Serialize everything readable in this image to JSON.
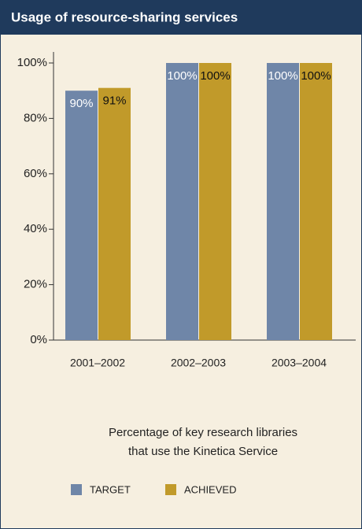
{
  "chart_data": {
    "type": "bar",
    "title": "Usage of resource-sharing services",
    "categories": [
      "2001–2002",
      "2002–2003",
      "2003–2004"
    ],
    "series": [
      {
        "name": "TARGET",
        "color": "#6f86a8",
        "values": [
          90,
          100,
          100
        ],
        "value_labels": [
          "90%",
          "100%",
          "100%"
        ]
      },
      {
        "name": "ACHIEVED",
        "color": "#c19a2a",
        "values": [
          91,
          100,
          100
        ],
        "value_labels": [
          "91%",
          "100%",
          "100%"
        ]
      }
    ],
    "ylim": [
      0,
      100
    ],
    "yticks": [
      {
        "value": 0,
        "label": "0%"
      },
      {
        "value": 20,
        "label": "20%"
      },
      {
        "value": 40,
        "label": "40%"
      },
      {
        "value": 60,
        "label": "60%"
      },
      {
        "value": 80,
        "label": "80%"
      },
      {
        "value": 100,
        "label": "100%"
      }
    ],
    "caption": [
      "Percentage of key research libraries",
      "that use the Kinetica Service"
    ],
    "grid": false,
    "legend": "bottom"
  }
}
